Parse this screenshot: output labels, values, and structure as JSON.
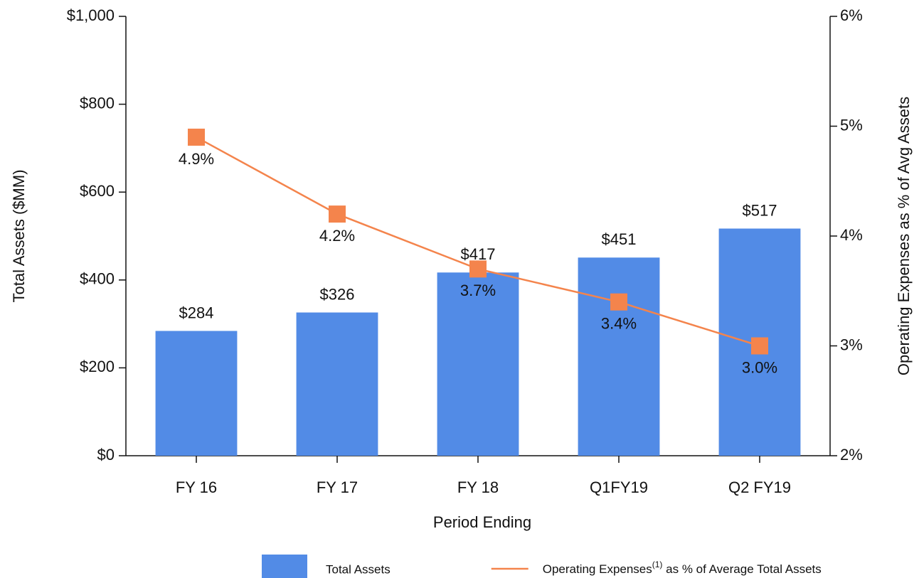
{
  "chart_data": {
    "type": "bar",
    "categories": [
      "FY 16",
      "FY 17",
      "FY 18",
      "Q1FY19",
      "Q2 FY19"
    ],
    "x_label": "Period Ending",
    "y_label": "Total Assets ($MM)",
    "y2_label": "Operating Expenses as % of Avg Assets",
    "ylim": [
      0,
      1000
    ],
    "yticks": [
      {
        "value": 0,
        "label": "$0"
      },
      {
        "value": 200,
        "label": "$200"
      },
      {
        "value": 400,
        "label": "$400"
      },
      {
        "value": 600,
        "label": "$600"
      },
      {
        "value": 800,
        "label": "$800"
      },
      {
        "value": 1000,
        "label": "$1,000"
      }
    ],
    "y2lim": [
      2,
      6
    ],
    "y2ticks": [
      {
        "value": 2,
        "label": "2%"
      },
      {
        "value": 3,
        "label": "3%"
      },
      {
        "value": 4,
        "label": "4%"
      },
      {
        "value": 5,
        "label": "5%"
      },
      {
        "value": 6,
        "label": "6%"
      }
    ],
    "series": [
      {
        "name": "Total Assets",
        "type": "bar",
        "color": "#528be6",
        "values": [
          284,
          326,
          417,
          451,
          517
        ],
        "value_labels": [
          "$284",
          "$326",
          "$417",
          "$451",
          "$517"
        ]
      },
      {
        "name": "Operating Expenses(1) as % of Average Total Assets",
        "type": "line",
        "axis": "y2",
        "color": "#f4844c",
        "values": [
          4.9,
          4.2,
          3.7,
          3.4,
          3.0
        ],
        "value_labels": [
          "4.9%",
          "4.2%",
          "3.7%",
          "3.4%",
          "3.0%"
        ]
      }
    ]
  }
}
